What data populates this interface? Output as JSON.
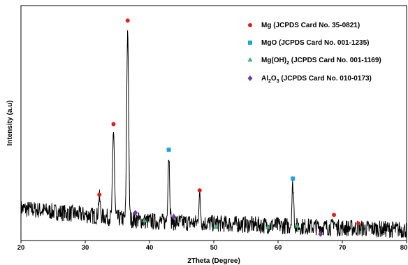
{
  "chart_data": {
    "type": "line",
    "title": "",
    "xlabel": "2Theta (Degree)",
    "ylabel": "Intensity (a.u)",
    "xlim": [
      20,
      80
    ],
    "xticks": [
      20,
      30,
      40,
      50,
      60,
      70,
      80
    ],
    "ylim": [
      0,
      110
    ],
    "y_tick_labels_shown": false,
    "grid": false,
    "legend_position": "top-right",
    "pattern": {
      "name": "",
      "color": "#000000",
      "baseline": [
        [
          20,
          15
        ],
        [
          30,
          12
        ],
        [
          40,
          9
        ],
        [
          50,
          8
        ],
        [
          60,
          7
        ],
        [
          70,
          6
        ],
        [
          80,
          5
        ]
      ],
      "noise_amplitude": 2.5,
      "peaks": [
        {
          "x": 32.2,
          "y": 20
        },
        {
          "x": 34.4,
          "y": 52
        },
        {
          "x": 36.6,
          "y": 100
        },
        {
          "x": 43.0,
          "y": 40
        },
        {
          "x": 47.8,
          "y": 21
        },
        {
          "x": 62.3,
          "y": 26
        },
        {
          "x": 68.7,
          "y": 9
        },
        {
          "x": 72.5,
          "y": 6
        }
      ]
    },
    "markers": [
      {
        "phase": "Mg",
        "x": 32.2,
        "y": 21.5
      },
      {
        "phase": "Mg",
        "x": 34.4,
        "y": 54.5
      },
      {
        "phase": "Mg",
        "x": 36.6,
        "y": 103
      },
      {
        "phase": "Mg",
        "x": 47.8,
        "y": 23.5
      },
      {
        "phase": "Mg",
        "x": 68.7,
        "y": 12
      },
      {
        "phase": "Mg",
        "x": 72.5,
        "y": 8
      },
      {
        "phase": "MgO",
        "x": 43.0,
        "y": 42.5
      },
      {
        "phase": "MgO",
        "x": 62.3,
        "y": 29
      },
      {
        "phase": "MgOH2",
        "x": 39.2,
        "y": 9.5
      },
      {
        "phase": "MgOH2",
        "x": 50.3,
        "y": 6.5
      },
      {
        "phase": "MgOH2",
        "x": 58.4,
        "y": 6.5
      },
      {
        "phase": "MgOH2",
        "x": 63.0,
        "y": 7
      },
      {
        "phase": "Al2O3",
        "x": 37.8,
        "y": 13
      },
      {
        "phase": "Al2O3",
        "x": 43.8,
        "y": 11
      },
      {
        "phase": "Al2O3",
        "x": 66.6,
        "y": 3
      }
    ],
    "legend": [
      {
        "key": "Mg",
        "shape": "circle",
        "color": "#e0201b",
        "text": "Mg (JCPDS Card No. 35-0821)"
      },
      {
        "key": "MgO",
        "shape": "square",
        "color": "#1fa3dc",
        "text": "MgO (JCPDS Card No. 001-1235)"
      },
      {
        "key": "MgOH2",
        "shape": "triangle",
        "color": "#3ab07a",
        "text_main": "Mg(OH)",
        "text_sub": "2",
        "text_rest": " (JCPDS Card No. 001-1169)"
      },
      {
        "key": "Al2O3",
        "shape": "diamond",
        "color": "#6a3aa8",
        "text_main": "Al",
        "text_sub": "2",
        "text_mid": "O",
        "text_sub2": "3",
        "text_rest": " (JCPDS Card No. 010-0173)"
      }
    ]
  }
}
